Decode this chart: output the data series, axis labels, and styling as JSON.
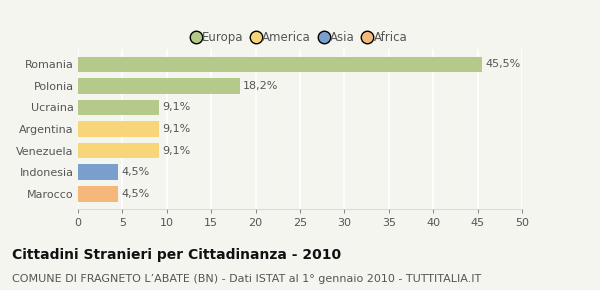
{
  "categories": [
    "Romania",
    "Polonia",
    "Ucraina",
    "Argentina",
    "Venezuela",
    "Indonesia",
    "Marocco"
  ],
  "values": [
    45.5,
    18.2,
    9.1,
    9.1,
    9.1,
    4.5,
    4.5
  ],
  "labels": [
    "45,5%",
    "18,2%",
    "9,1%",
    "9,1%",
    "9,1%",
    "4,5%",
    "4,5%"
  ],
  "colors": [
    "#b5c98a",
    "#b5c98a",
    "#b5c98a",
    "#f9d57a",
    "#f9d57a",
    "#7a9fcc",
    "#f5b87a"
  ],
  "legend_labels": [
    "Europa",
    "America",
    "Asia",
    "Africa"
  ],
  "legend_colors": [
    "#b5c98a",
    "#f9d57a",
    "#7a9fcc",
    "#f5b87a"
  ],
  "xlim": [
    0,
    50
  ],
  "xticks": [
    0,
    5,
    10,
    15,
    20,
    25,
    30,
    35,
    40,
    45,
    50
  ],
  "title": "Cittadini Stranieri per Cittadinanza - 2010",
  "subtitle": "COMUNE DI FRAGNETO L’ABATE (BN) - Dati ISTAT al 1° gennaio 2010 - TUTTITALIA.IT",
  "bg_color": "#f5f5f0",
  "bar_height": 0.72,
  "title_fontsize": 10,
  "subtitle_fontsize": 8,
  "label_fontsize": 8,
  "tick_fontsize": 8,
  "legend_fontsize": 8.5
}
